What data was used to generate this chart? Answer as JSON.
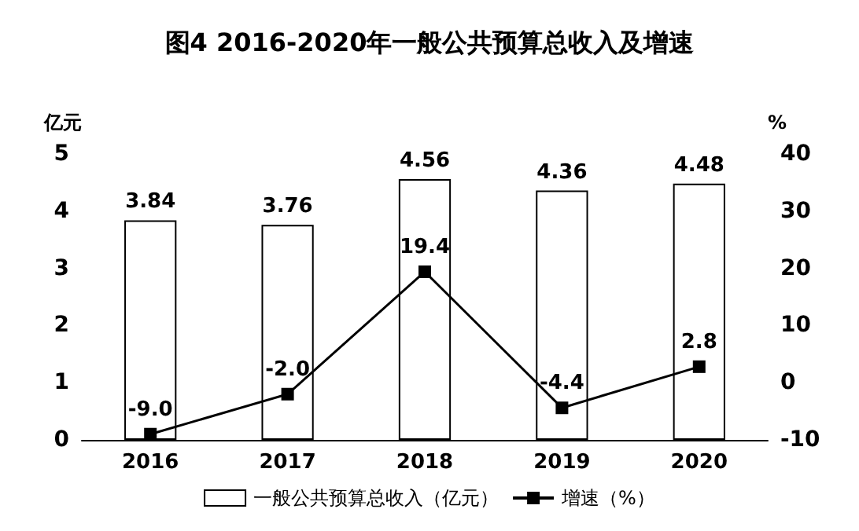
{
  "chart_data": {
    "type": "bar",
    "title": "图4 2016-2020年一般公共预算总收入及增速",
    "ylabel": "亿元",
    "y2label": "%",
    "categories": [
      "2016",
      "2017",
      "2018",
      "2019",
      "2020"
    ],
    "series": [
      {
        "name": "一般公共预算总收入（亿元）",
        "color": "#ffffff",
        "values": [
          3.84,
          3.76,
          4.56,
          4.36,
          4.48
        ],
        "value_labels": [
          "3.84",
          "3.76",
          "4.56",
          "4.36",
          "4.48"
        ]
      },
      {
        "name": "增速（%）",
        "type": "line",
        "axis": "y2",
        "color": "#000000",
        "marker": "square",
        "values": [
          -9.0,
          -2.0,
          19.4,
          -4.4,
          2.8
        ],
        "value_labels": [
          "-9.0",
          "-2.0",
          "19.4",
          "-4.4",
          "2.8"
        ]
      }
    ],
    "ylim": [
      0,
      5
    ],
    "yticks": [
      0,
      1,
      2,
      3,
      4,
      5
    ],
    "y2lim": [
      -10,
      40
    ],
    "y2ticks": [
      -10,
      0,
      10,
      20,
      30,
      40
    ],
    "legend": "bottom",
    "grid": false
  }
}
